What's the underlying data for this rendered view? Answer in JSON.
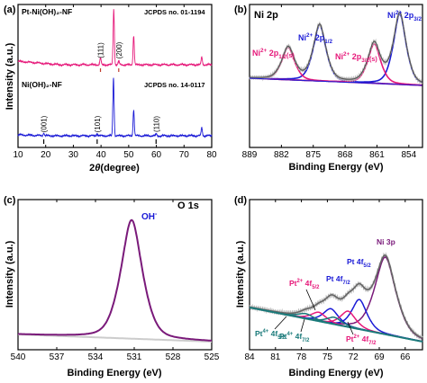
{
  "chart_data": [
    {
      "panel": "(a)",
      "type": "line",
      "xlabel_prefix": "2",
      "xlabel_theta": "θ",
      "xlabel_suffix": "(degree)",
      "ylabel": "Intensity (a.u.)",
      "xlim": [
        10,
        80
      ],
      "xticks": [
        10,
        20,
        30,
        40,
        50,
        60,
        70,
        80
      ],
      "series": [
        {
          "name": "Pt-Ni(OH)₂-NF",
          "color": "#e6197a",
          "reference": "JCPDS no. 01-1194",
          "peaks": [
            {
              "x": 39.8,
              "h": 0.12
            },
            {
              "x": 44.6,
              "h": 1.0
            },
            {
              "x": 46.4,
              "h": 0.06
            },
            {
              "x": 51.8,
              "h": 0.52
            },
            {
              "x": 76.4,
              "h": 0.14
            }
          ],
          "labels": [
            {
              "text": "(111)",
              "x": 39.8
            },
            {
              "text": "(200)",
              "x": 46.4
            }
          ]
        },
        {
          "name": "Ni(OH)₂-NF",
          "color": "#1a1ad6",
          "reference": "JCPDS no. 14-0117",
          "peaks": [
            {
              "x": 19.3,
              "h": 0.05
            },
            {
              "x": 38.6,
              "h": 0.04
            },
            {
              "x": 44.5,
              "h": 1.0
            },
            {
              "x": 51.8,
              "h": 0.44
            },
            {
              "x": 59.9,
              "h": 0.03
            },
            {
              "x": 76.4,
              "h": 0.14
            }
          ],
          "labels": [
            {
              "text": "(001)",
              "x": 19.3
            },
            {
              "text": "(101)",
              "x": 38.6
            },
            {
              "text": "(110)",
              "x": 59.9
            }
          ]
        }
      ]
    },
    {
      "panel": "(b)",
      "title": "Ni 2p",
      "type": "line",
      "xlabel": "Binding Energy (eV)",
      "xlim": [
        889,
        851
      ],
      "xticks": [
        889,
        882,
        875,
        868,
        861,
        854
      ],
      "components": [
        {
          "name": "Ni²⁺ 2p1/2",
          "center": 873.6,
          "amp": 0.78,
          "color": "#1a1ad6"
        },
        {
          "name": "Ni²⁺ 2p1/2(s)",
          "center": 880.5,
          "amp": 0.45,
          "color": "#e6197a"
        },
        {
          "name": "Ni²⁺ 2p3/2",
          "center": 856.0,
          "amp": 0.98,
          "color": "#1a1ad6"
        },
        {
          "name": "Ni²⁺ 2p3/2(s)",
          "center": 861.6,
          "amp": 0.55,
          "color": "#e6197a"
        }
      ],
      "labels": [
        {
          "main": "Ni",
          "sup": "2+",
          "rest": " 2p",
          "sub": "1/2",
          "tail": "",
          "color": "#1a1ad6"
        },
        {
          "main": "Ni",
          "sup": "2+",
          "rest": " 2p",
          "sub": "1/2",
          "tail": "(s)",
          "color": "#e6197a"
        },
        {
          "main": "Ni",
          "sup": "2+",
          "rest": " 2p",
          "sub": "3/2",
          "tail": "",
          "color": "#1a1ad6"
        },
        {
          "main": "Ni",
          "sup": "2+",
          "rest": " 2p",
          "sub": "3/2",
          "tail": "(s)",
          "color": "#e6197a"
        }
      ]
    },
    {
      "panel": "(c)",
      "title": "O 1s",
      "type": "line",
      "xlabel": "Binding Energy (eV)",
      "ylabel": "Intensity (a.u.)",
      "xlim": [
        540,
        525
      ],
      "xticks": [
        540,
        537,
        534,
        531,
        528,
        525
      ],
      "components": [
        {
          "name": "OH⁻",
          "center": 531.2,
          "amp": 1.0,
          "color": "#7a1a7a"
        }
      ],
      "labels": [
        {
          "main": "OH",
          "sup": "-",
          "color": "#1a1ad6"
        }
      ]
    },
    {
      "panel": "(d)",
      "title": "Ni 3p",
      "type": "line",
      "xlabel": "Binding Energy (eV)",
      "ylabel": "Intensity (a.u.)",
      "xlim": [
        84,
        64
      ],
      "xticks": [
        84,
        81,
        78,
        75,
        72,
        69,
        66
      ],
      "components": [
        {
          "name": "Ni 3p",
          "center": 68.3,
          "amp": 0.78,
          "color": "#7a1a7a"
        },
        {
          "name": "Pt⁰ 4f5/2",
          "center": 71.3,
          "amp": 0.3,
          "color": "#1a1ad6"
        },
        {
          "name": "Pt⁰ 4f7/2",
          "center": 74.6,
          "amp": 0.15,
          "color": "#1a1ad6"
        },
        {
          "name": "Pt²⁺ 4f7/2",
          "center": 72.6,
          "amp": 0.16,
          "color": "#e6197a"
        },
        {
          "name": "Pt²⁺ 4f5/2",
          "center": 76.0,
          "amp": 0.09,
          "color": "#e6197a"
        },
        {
          "name": "Pt⁴⁺ 4f7/2",
          "center": 74.2,
          "amp": 0.07,
          "color": "#1a7a7a"
        },
        {
          "name": "Pt⁴⁺ 4f5/2",
          "center": 77.5,
          "amp": 0.05,
          "color": "#1a7a7a"
        }
      ],
      "labels": [
        {
          "main": "Ni 3p",
          "sup": "",
          "sub": "",
          "color": "#7a1a7a"
        },
        {
          "main": "Pt 4f",
          "sup": "",
          "sub": "5/2",
          "color": "#1a1ad6"
        },
        {
          "main": "Pt 4f",
          "sup": "",
          "sub": "7/2",
          "color": "#1a1ad6"
        },
        {
          "main": "Pt",
          "sup": "2+",
          "rest": " 4f",
          "sub": "5/2",
          "color": "#e6197a"
        },
        {
          "main": "Pt",
          "sup": "2+",
          "rest": " 4f",
          "sub": "7/2",
          "color": "#e6197a"
        },
        {
          "main": "Pt",
          "sup": "4+",
          "rest": " 4f",
          "sub": "5/2",
          "color": "#1a7a7a"
        },
        {
          "main": "Pt",
          "sup": "4+",
          "rest": " 4f",
          "sub": "7/2",
          "color": "#1a7a7a"
        }
      ]
    }
  ]
}
